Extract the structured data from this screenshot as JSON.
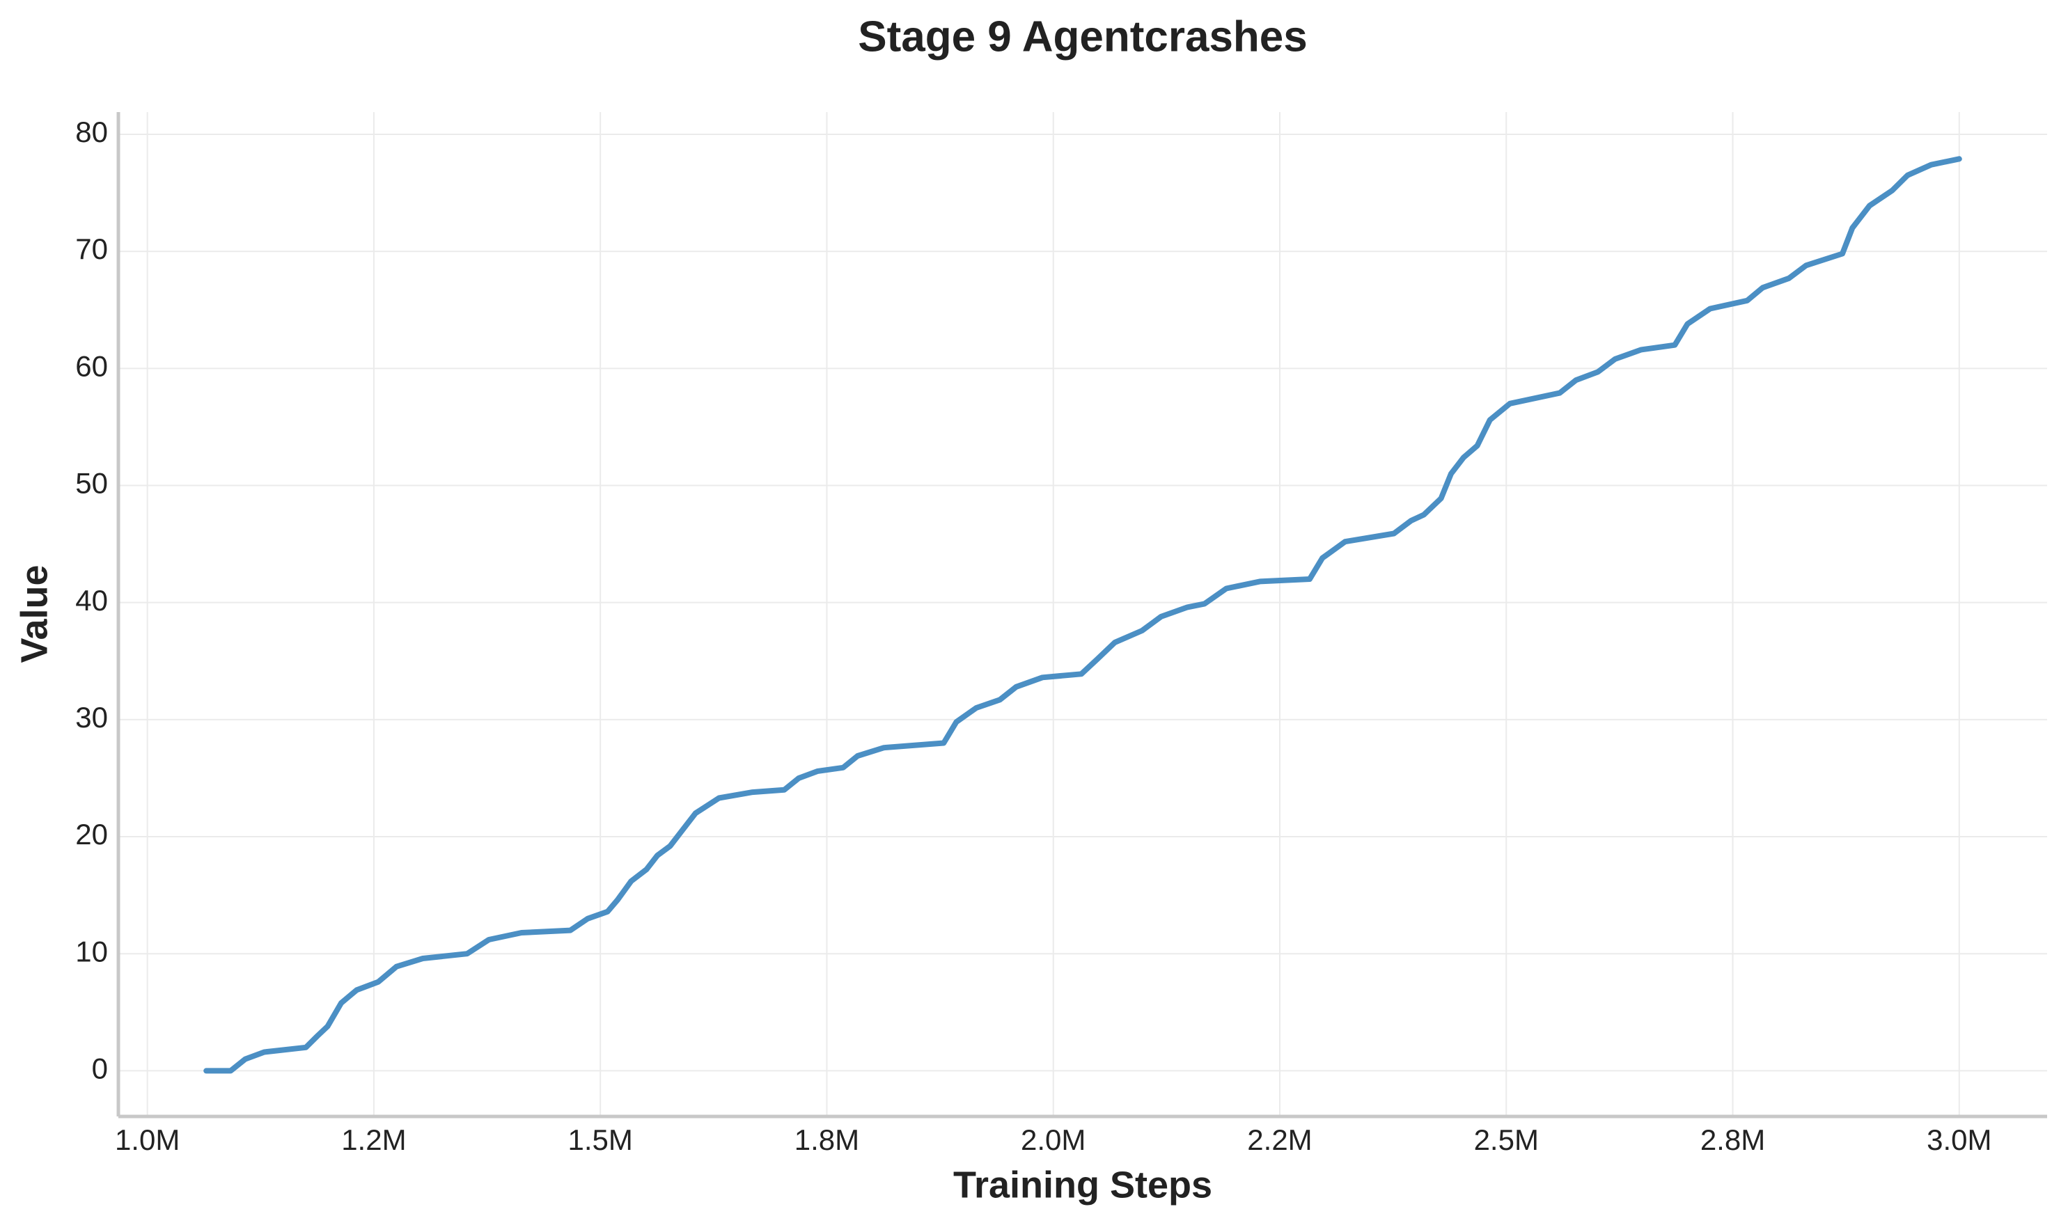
{
  "chart_data": {
    "type": "line",
    "title": "Stage 9 Agentcrashes",
    "xlabel": "Training Steps",
    "ylabel": "Value",
    "color": "#4b8fc4",
    "grid": true,
    "xlim": [
      968000,
      3097000
    ],
    "ylim": [
      -3.9,
      81.9
    ],
    "xticks": [
      {
        "value": 1000000,
        "label": "1.0M"
      },
      {
        "value": 1250000,
        "label": "1.2M"
      },
      {
        "value": 1500000,
        "label": "1.5M"
      },
      {
        "value": 1750000,
        "label": "1.8M"
      },
      {
        "value": 2000000,
        "label": "2.0M"
      },
      {
        "value": 2250000,
        "label": "2.2M"
      },
      {
        "value": 2500000,
        "label": "2.5M"
      },
      {
        "value": 2750000,
        "label": "2.8M"
      },
      {
        "value": 3000000,
        "label": "3.0M"
      }
    ],
    "yticks": [
      0,
      10,
      20,
      30,
      40,
      50,
      60,
      70,
      80
    ],
    "x": [
      1065000,
      1092000,
      1108000,
      1129000,
      1175000,
      1188000,
      1199000,
      1214000,
      1231000,
      1255000,
      1275000,
      1304000,
      1353000,
      1377000,
      1413000,
      1467000,
      1486000,
      1508000,
      1519000,
      1534000,
      1551000,
      1563000,
      1577000,
      1589000,
      1605000,
      1631000,
      1668000,
      1703000,
      1719000,
      1740000,
      1768000,
      1784000,
      1813000,
      1879000,
      1893000,
      1915000,
      1941000,
      1959000,
      1988000,
      2031000,
      2049000,
      2068000,
      2098000,
      2119000,
      2148000,
      2167000,
      2191000,
      2228000,
      2283000,
      2297000,
      2322000,
      2376000,
      2395000,
      2409000,
      2428000,
      2439000,
      2453000,
      2468000,
      2482000,
      2504000,
      2559000,
      2577000,
      2601000,
      2620000,
      2649000,
      2686000,
      2700000,
      2725000,
      2766000,
      2783000,
      2812000,
      2831000,
      2871000,
      2882000,
      2901000,
      2926000,
      2943000,
      2969000,
      3000000
    ],
    "values": [
      0,
      0,
      1.0,
      1.6,
      2.0,
      3.0,
      3.8,
      5.8,
      6.9,
      7.6,
      8.9,
      9.6,
      10.0,
      11.2,
      11.8,
      12.0,
      13.0,
      13.6,
      14.6,
      16.2,
      17.2,
      18.4,
      19.2,
      20.4,
      22.0,
      23.3,
      23.8,
      24.0,
      25.0,
      25.6,
      25.9,
      26.9,
      27.6,
      28.0,
      29.8,
      31.0,
      31.7,
      32.8,
      33.6,
      33.9,
      35.2,
      36.6,
      37.6,
      38.8,
      39.6,
      39.9,
      41.2,
      41.8,
      42.0,
      43.8,
      45.2,
      45.9,
      47.0,
      47.5,
      48.9,
      51.0,
      52.4,
      53.4,
      55.6,
      57.0,
      57.9,
      59.0,
      59.7,
      60.8,
      61.6,
      62.0,
      63.8,
      65.1,
      65.8,
      66.9,
      67.7,
      68.8,
      69.8,
      72.0,
      73.9,
      75.2,
      76.5,
      77.4,
      77.9
    ]
  }
}
